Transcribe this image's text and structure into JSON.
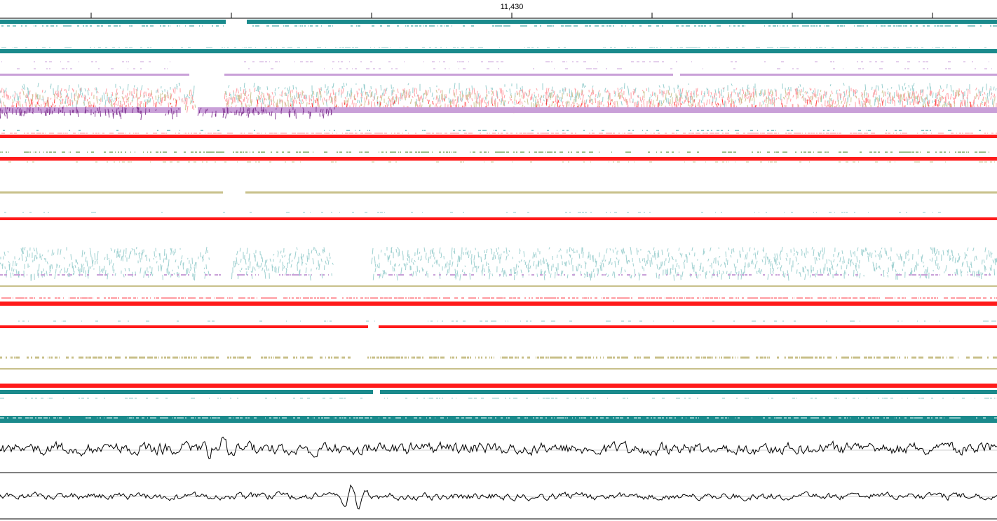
{
  "ruler": {
    "center_label": "11,430"
  },
  "colors": {
    "teal": "#1a8a8c",
    "teal_light": "#8cc9c9",
    "red": "#ff1a1a",
    "pink": "#ff9aa0",
    "lilac": "#c9a0d8",
    "purple": "#7a2a8a",
    "khaki": "#c8c08a",
    "sage": "#9cc08c",
    "cyan": "#9ed0d0",
    "black": "#000000",
    "grey_line": "#cfcfcf"
  },
  "tracks": [
    {
      "name": "track-1-teal-band",
      "kind": "band",
      "color": "teal"
    },
    {
      "name": "track-2-teal-band",
      "kind": "band",
      "color": "teal"
    },
    {
      "name": "track-3-mixed-scatter",
      "kind": "scatter",
      "color": "mixed"
    },
    {
      "name": "track-4-red-band",
      "kind": "band",
      "color": "red"
    },
    {
      "name": "track-5-red-band",
      "kind": "band",
      "color": "red"
    },
    {
      "name": "track-6-khaki-band",
      "kind": "band",
      "color": "khaki"
    },
    {
      "name": "track-7-red-band",
      "kind": "band",
      "color": "red"
    },
    {
      "name": "track-8-cyan-scatter",
      "kind": "scatter",
      "color": "cyan"
    },
    {
      "name": "track-9-red-band",
      "kind": "band",
      "color": "red"
    },
    {
      "name": "track-10-red-band",
      "kind": "band",
      "color": "red"
    },
    {
      "name": "track-11-khaki-band",
      "kind": "band",
      "color": "khaki"
    },
    {
      "name": "track-12-red-teal-band",
      "kind": "band",
      "color": "red"
    },
    {
      "name": "track-13-teal-band",
      "kind": "band",
      "color": "teal"
    },
    {
      "name": "track-14-waveform",
      "kind": "waveform",
      "color": "black"
    },
    {
      "name": "track-15-waveform",
      "kind": "waveform",
      "color": "black"
    }
  ]
}
